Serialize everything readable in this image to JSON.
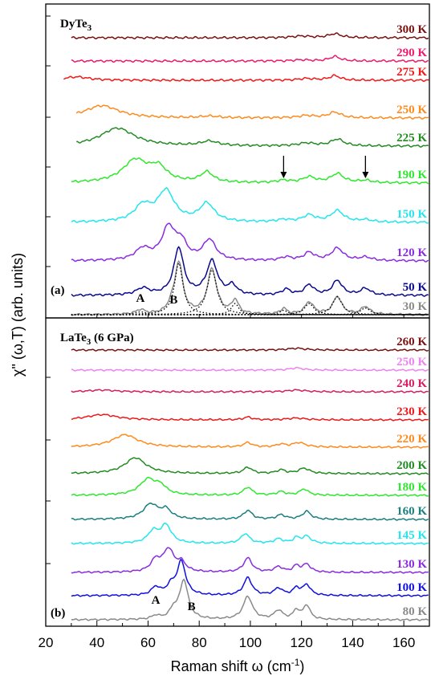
{
  "chart_data": {
    "type": "line",
    "xlabel": "Raman shift ω (cm",
    "xlabel_sup": "-1",
    "xlabel_end": ")",
    "ylabel": "χ\" (ω,T) (arb. units)",
    "xlim": [
      20,
      170
    ],
    "xticks": [
      20,
      40,
      60,
      80,
      100,
      120,
      140,
      160
    ],
    "panels": [
      {
        "id": "a",
        "panel_label": "(a)",
        "title_main": "DyTe",
        "title_sub": "3",
        "title_suffix": "",
        "peak_labels": [
          "A",
          "B"
        ],
        "arrow_positions_cm": [
          113,
          145
        ],
        "arrow_series": "190 K",
        "series": [
          {
            "name": "300 K",
            "color": "#7a1010",
            "xstart": 30,
            "peaks": [
              {
                "c": 120,
                "a": 0.15,
                "w": 4
              },
              {
                "c": 133,
                "a": 0.35,
                "w": 3
              }
            ]
          },
          {
            "name": "290 K",
            "color": "#ec1a6e",
            "xstart": 30,
            "peaks": [
              {
                "c": 120,
                "a": 0.1,
                "w": 4
              },
              {
                "c": 133,
                "a": 0.4,
                "w": 2.5
              }
            ]
          },
          {
            "name": "275 K",
            "color": "#f01818",
            "xstart": 27,
            "peaks": [
              {
                "c": 32,
                "a": 0.3,
                "w": 6
              },
              {
                "c": 122,
                "a": 0.15,
                "w": 4
              },
              {
                "c": 133,
                "a": 0.4,
                "w": 2.5
              }
            ]
          },
          {
            "name": "250 K",
            "color": "#ff8a1c",
            "xstart": 32,
            "peaks": [
              {
                "c": 42,
                "a": 1.1,
                "w": 8
              },
              {
                "c": 84,
                "a": 0.15,
                "w": 4
              },
              {
                "c": 122,
                "a": 0.2,
                "w": 4
              },
              {
                "c": 133,
                "a": 0.5,
                "w": 3
              }
            ]
          },
          {
            "name": "225 K",
            "color": "#228b22",
            "xstart": 32,
            "peaks": [
              {
                "c": 48,
                "a": 1.6,
                "w": 8
              },
              {
                "c": 84,
                "a": 0.4,
                "w": 4
              },
              {
                "c": 122,
                "a": 0.25,
                "w": 4
              },
              {
                "c": 134,
                "a": 0.6,
                "w": 3
              }
            ]
          },
          {
            "name": "190 K",
            "color": "#2ee82e",
            "xstart": 30,
            "peaks": [
              {
                "c": 55,
                "a": 2.0,
                "w": 6
              },
              {
                "c": 64,
                "a": 1.2,
                "w": 4
              },
              {
                "c": 83,
                "a": 0.9,
                "w": 3
              },
              {
                "c": 113,
                "a": 0.2,
                "w": 3
              },
              {
                "c": 123,
                "a": 0.5,
                "w": 3
              },
              {
                "c": 134,
                "a": 0.8,
                "w": 3
              },
              {
                "c": 145,
                "a": 0.2,
                "w": 3
              }
            ]
          },
          {
            "name": "150 K",
            "color": "#22e6ee",
            "xstart": 30,
            "peaks": [
              {
                "c": 58,
                "a": 1.4,
                "w": 4
              },
              {
                "c": 67,
                "a": 2.7,
                "w": 4
              },
              {
                "c": 83,
                "a": 1.6,
                "w": 3.5
              },
              {
                "c": 113,
                "a": 0.2,
                "w": 3
              },
              {
                "c": 123,
                "a": 0.6,
                "w": 3
              },
              {
                "c": 134,
                "a": 1.0,
                "w": 3
              },
              {
                "c": 145,
                "a": 0.2,
                "w": 3
              }
            ]
          },
          {
            "name": "120 K",
            "color": "#8a2be2",
            "xstart": 30,
            "peaks": [
              {
                "c": 58,
                "a": 1.0,
                "w": 3.5
              },
              {
                "c": 68,
                "a": 2.9,
                "w": 3.2
              },
              {
                "c": 73,
                "a": 1.4,
                "w": 2.5
              },
              {
                "c": 84,
                "a": 1.8,
                "w": 3
              },
              {
                "c": 114,
                "a": 0.3,
                "w": 2.5
              },
              {
                "c": 123,
                "a": 0.7,
                "w": 2.5
              },
              {
                "c": 134,
                "a": 1.1,
                "w": 2.8
              },
              {
                "c": 145,
                "a": 0.3,
                "w": 2.8
              }
            ]
          },
          {
            "name": "50 K",
            "color": "#0a0a8c",
            "xstart": 30,
            "peaks": [
              {
                "c": 58,
                "a": 0.6,
                "w": 3
              },
              {
                "c": 72,
                "a": 4.2,
                "w": 2.3
              },
              {
                "c": 85,
                "a": 3.0,
                "w": 2.6
              },
              {
                "c": 93,
                "a": 0.8,
                "w": 2
              },
              {
                "c": 114,
                "a": 0.5,
                "w": 2
              },
              {
                "c": 123,
                "a": 0.9,
                "w": 2.2
              },
              {
                "c": 134,
                "a": 1.3,
                "w": 2.3
              },
              {
                "c": 145,
                "a": 0.6,
                "w": 2.3
              }
            ]
          },
          {
            "name": "30 K",
            "color": "#8a8a8a",
            "xstart": 30,
            "peaks": [
              {
                "c": 57,
                "a": 0.4,
                "w": 2
              },
              {
                "c": 69,
                "a": 0.5,
                "w": 1.5
              },
              {
                "c": 72,
                "a": 4.6,
                "w": 1.9
              },
              {
                "c": 85,
                "a": 4.0,
                "w": 2.2
              },
              {
                "c": 94,
                "a": 1.2,
                "w": 1.6
              },
              {
                "c": 113,
                "a": 0.5,
                "w": 1.5
              },
              {
                "c": 123,
                "a": 1.1,
                "w": 2
              },
              {
                "c": 134,
                "a": 1.6,
                "w": 2
              },
              {
                "c": 145,
                "a": 0.7,
                "w": 2
              }
            ]
          }
        ]
      },
      {
        "id": "b",
        "panel_label": "(b)",
        "title_main": "LaTe",
        "title_sub": "3",
        "title_suffix": " (6 GPa)",
        "peak_labels": [
          "A",
          "B"
        ],
        "series": [
          {
            "name": "260 K",
            "color": "#7a1010",
            "xstart": 30,
            "peaks": [
              {
                "c": 118,
                "a": 0.2,
                "w": 4
              }
            ]
          },
          {
            "name": "250 K",
            "color": "#ee82ee",
            "xstart": 30,
            "peaks": [
              {
                "c": 118,
                "a": 0.25,
                "w": 3
              }
            ]
          },
          {
            "name": "240 K",
            "color": "#d81b60",
            "xstart": 30,
            "peaks": [
              {
                "c": 42,
                "a": 0.2,
                "w": 6
              },
              {
                "c": 118,
                "a": 0.2,
                "w": 4
              }
            ]
          },
          {
            "name": "230 K",
            "color": "#f01818",
            "xstart": 30,
            "peaks": [
              {
                "c": 42,
                "a": 0.6,
                "w": 7
              },
              {
                "c": 99,
                "a": 0.3,
                "w": 2
              },
              {
                "c": 118,
                "a": 0.2,
                "w": 4
              }
            ]
          },
          {
            "name": "220 K",
            "color": "#ff8a1c",
            "xstart": 30,
            "peaks": [
              {
                "c": 51,
                "a": 1.4,
                "w": 6
              },
              {
                "c": 99,
                "a": 0.5,
                "w": 2
              },
              {
                "c": 112,
                "a": 0.3,
                "w": 2
              },
              {
                "c": 119,
                "a": 0.5,
                "w": 3
              }
            ]
          },
          {
            "name": "200 K",
            "color": "#228b22",
            "xstart": 30,
            "peaks": [
              {
                "c": 55,
                "a": 1.8,
                "w": 5
              },
              {
                "c": 99,
                "a": 0.7,
                "w": 2
              },
              {
                "c": 112,
                "a": 0.4,
                "w": 2
              },
              {
                "c": 121,
                "a": 0.6,
                "w": 2.5
              }
            ]
          },
          {
            "name": "180 K",
            "color": "#2ee82e",
            "xstart": 30,
            "peaks": [
              {
                "c": 60,
                "a": 1.8,
                "w": 4
              },
              {
                "c": 65,
                "a": 0.8,
                "w": 2.5
              },
              {
                "c": 99,
                "a": 0.9,
                "w": 2
              },
              {
                "c": 112,
                "a": 0.4,
                "w": 2
              },
              {
                "c": 121,
                "a": 0.7,
                "w": 2
              }
            ]
          },
          {
            "name": "160 K",
            "color": "#1a7f7f",
            "xstart": 30,
            "peaks": [
              {
                "c": 61,
                "a": 1.7,
                "w": 3.5
              },
              {
                "c": 67,
                "a": 1.0,
                "w": 2.5
              },
              {
                "c": 99,
                "a": 1.0,
                "w": 2
              },
              {
                "c": 112,
                "a": 0.5,
                "w": 2
              },
              {
                "c": 122,
                "a": 0.9,
                "w": 2
              }
            ]
          },
          {
            "name": "145 K",
            "color": "#22e6ee",
            "xstart": 30,
            "peaks": [
              {
                "c": 62,
                "a": 1.3,
                "w": 2.5
              },
              {
                "c": 67,
                "a": 2.0,
                "w": 2.5
              },
              {
                "c": 98,
                "a": 1.1,
                "w": 2
              },
              {
                "c": 111,
                "a": 0.5,
                "w": 2
              },
              {
                "c": 118,
                "a": 0.6,
                "w": 1.5
              },
              {
                "c": 122,
                "a": 0.8,
                "w": 2
              }
            ]
          },
          {
            "name": "130 K",
            "color": "#8a2be2",
            "xstart": 30,
            "peaks": [
              {
                "c": 63,
                "a": 1.3,
                "w": 2.3
              },
              {
                "c": 68,
                "a": 2.5,
                "w": 2.5
              },
              {
                "c": 73,
                "a": 1.0,
                "w": 2
              },
              {
                "c": 99,
                "a": 1.6,
                "w": 2
              },
              {
                "c": 111,
                "a": 0.6,
                "w": 2
              },
              {
                "c": 118,
                "a": 0.7,
                "w": 1.5
              },
              {
                "c": 122,
                "a": 0.9,
                "w": 1.8
              }
            ]
          },
          {
            "name": "100 K",
            "color": "#1010e0",
            "xstart": 30,
            "peaks": [
              {
                "c": 63,
                "a": 0.9,
                "w": 2
              },
              {
                "c": 69,
                "a": 1.0,
                "w": 2
              },
              {
                "c": 73,
                "a": 3.8,
                "w": 2
              },
              {
                "c": 99,
                "a": 2.0,
                "w": 2
              },
              {
                "c": 111,
                "a": 0.8,
                "w": 2
              },
              {
                "c": 118,
                "a": 0.8,
                "w": 1.5
              },
              {
                "c": 122,
                "a": 1.2,
                "w": 1.8
              }
            ]
          },
          {
            "name": "80 K",
            "color": "#8a8a8a",
            "xstart": 30,
            "peaks": [
              {
                "c": 63,
                "a": 0.4,
                "w": 1.8
              },
              {
                "c": 70,
                "a": 1.0,
                "w": 1.8
              },
              {
                "c": 74,
                "a": 4.4,
                "w": 2
              },
              {
                "c": 99,
                "a": 2.6,
                "w": 2.2
              },
              {
                "c": 111,
                "a": 1.0,
                "w": 2
              },
              {
                "c": 118,
                "a": 1.0,
                "w": 1.4
              },
              {
                "c": 122,
                "a": 1.6,
                "w": 1.6
              }
            ]
          }
        ]
      }
    ],
    "fit_components_30K": [
      {
        "c": 57,
        "a": 0.25,
        "w": 3
      },
      {
        "c": 72,
        "a": 4.6,
        "w": 2
      },
      {
        "c": 85,
        "a": 4.0,
        "w": 2.3
      },
      {
        "c": 94,
        "a": 1.0,
        "w": 1.8
      },
      {
        "c": 113,
        "a": 0.4,
        "w": 1.8
      },
      {
        "c": 123,
        "a": 1.0,
        "w": 2.2
      },
      {
        "c": 134,
        "a": 1.6,
        "w": 2.3
      },
      {
        "c": 145,
        "a": 0.6,
        "w": 2.3
      }
    ]
  }
}
